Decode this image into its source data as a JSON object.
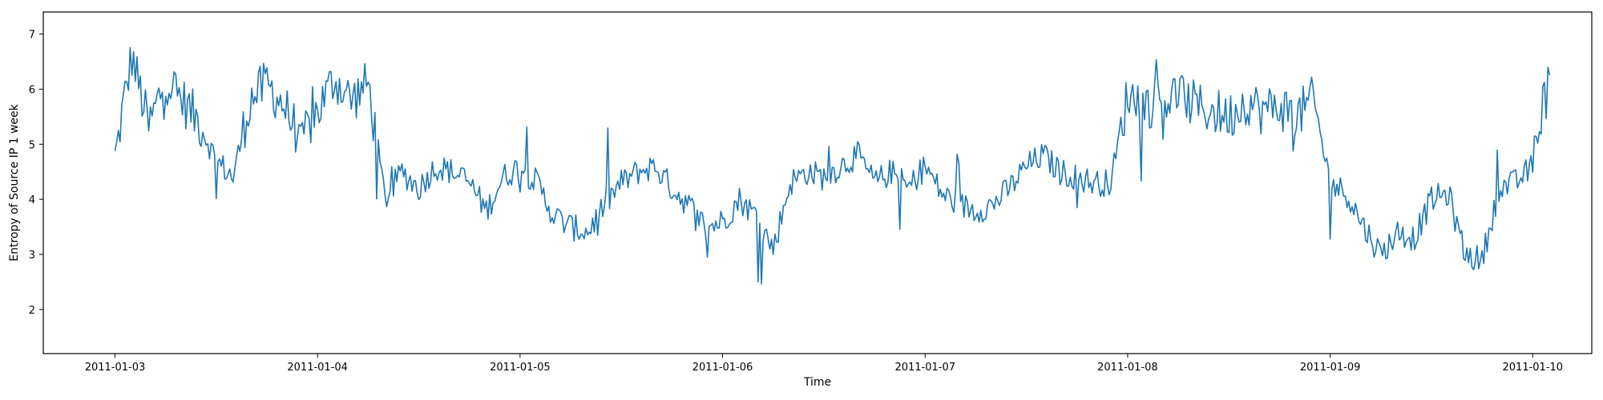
{
  "chart_data": {
    "type": "line",
    "title": "",
    "xlabel": "Time",
    "ylabel": "Entropy of Source IP 1 week",
    "x_ticks": [
      "2011-01-03",
      "2011-01-04",
      "2011-01-05",
      "2011-01-06",
      "2011-01-07",
      "2011-01-08",
      "2011-01-09",
      "2011-01-10"
    ],
    "y_ticks": [
      2,
      3,
      4,
      5,
      6,
      7
    ],
    "xlim": [
      "2011-01-02 15:30",
      "2011-01-10 07:00"
    ],
    "ylim": [
      1.2,
      7.4
    ],
    "grid": false,
    "legend": "none",
    "line_color": "#1f77b4",
    "series": [
      {
        "x": [
          "2011-01-03 00:00",
          "2011-01-03 02:00",
          "2011-01-03 04:00",
          "2011-01-03 06:00",
          "2011-01-03 08:00",
          "2011-01-03 10:00",
          "2011-01-03 12:00",
          "2011-01-03 14:00",
          "2011-01-03 16:00",
          "2011-01-03 18:00",
          "2011-01-03 20:00",
          "2011-01-03 22:00",
          "2011-01-04 00:00",
          "2011-01-04 02:00",
          "2011-01-04 04:00",
          "2011-01-04 06:00",
          "2011-01-04 08:00",
          "2011-01-04 10:00",
          "2011-01-04 12:00",
          "2011-01-04 14:00",
          "2011-01-04 16:00",
          "2011-01-04 18:00",
          "2011-01-04 20:00",
          "2011-01-04 22:00",
          "2011-01-05 00:00",
          "2011-01-05 02:00",
          "2011-01-05 04:00",
          "2011-01-05 06:00",
          "2011-01-05 08:00",
          "2011-01-05 10:00",
          "2011-01-05 12:00",
          "2011-01-05 14:00",
          "2011-01-05 16:00",
          "2011-01-05 18:00",
          "2011-01-05 20:00",
          "2011-01-05 22:00",
          "2011-01-06 00:00",
          "2011-01-06 02:00",
          "2011-01-06 04:00",
          "2011-01-06 06:00",
          "2011-01-06 08:00",
          "2011-01-06 10:00",
          "2011-01-06 12:00",
          "2011-01-06 14:00",
          "2011-01-06 16:00",
          "2011-01-06 18:00",
          "2011-01-06 20:00",
          "2011-01-06 22:00",
          "2011-01-07 00:00",
          "2011-01-07 02:00",
          "2011-01-07 04:00",
          "2011-01-07 06:00",
          "2011-01-07 08:00",
          "2011-01-07 10:00",
          "2011-01-07 12:00",
          "2011-01-07 14:00",
          "2011-01-07 16:00",
          "2011-01-07 18:00",
          "2011-01-07 20:00",
          "2011-01-07 22:00",
          "2011-01-08 00:00",
          "2011-01-08 02:00",
          "2011-01-08 04:00",
          "2011-01-08 06:00",
          "2011-01-08 08:00",
          "2011-01-08 10:00",
          "2011-01-08 12:00",
          "2011-01-08 14:00",
          "2011-01-08 16:00",
          "2011-01-08 18:00",
          "2011-01-08 20:00",
          "2011-01-08 22:00",
          "2011-01-09 00:00",
          "2011-01-09 02:00",
          "2011-01-09 04:00",
          "2011-01-09 06:00",
          "2011-01-09 08:00",
          "2011-01-09 10:00",
          "2011-01-09 12:00",
          "2011-01-09 14:00",
          "2011-01-09 16:00",
          "2011-01-09 18:00",
          "2011-01-09 20:00",
          "2011-01-09 22:00",
          "2011-01-10 00:00",
          "2011-01-10 01:00",
          "2011-01-10 02:00"
        ],
        "y": [
          4.8,
          6.6,
          5.3,
          6.2,
          5.8,
          5.4,
          4.7,
          4.4,
          5.8,
          6.1,
          5.7,
          5.1,
          5.6,
          6.2,
          5.8,
          6.1,
          4.0,
          4.5,
          4.2,
          4.6,
          4.5,
          4.3,
          3.8,
          4.4,
          4.6,
          4.3,
          3.7,
          3.5,
          3.4,
          3.9,
          4.3,
          4.5,
          4.6,
          4.2,
          3.9,
          3.5,
          3.6,
          4.0,
          3.7,
          3.1,
          4.3,
          4.5,
          4.4,
          4.6,
          4.8,
          4.3,
          4.5,
          4.2,
          4.6,
          4.1,
          3.9,
          3.8,
          3.9,
          4.2,
          4.6,
          4.8,
          4.5,
          4.4,
          4.3,
          4.3,
          5.9,
          5.7,
          5.8,
          5.9,
          5.7,
          5.6,
          5.5,
          5.8,
          5.6,
          5.7,
          5.5,
          5.8,
          4.3,
          4.1,
          3.5,
          3.0,
          3.4,
          3.3,
          4.0,
          4.1,
          3.0,
          2.9,
          4.2,
          4.3,
          4.6,
          5.6,
          6.1
        ]
      }
    ]
  }
}
